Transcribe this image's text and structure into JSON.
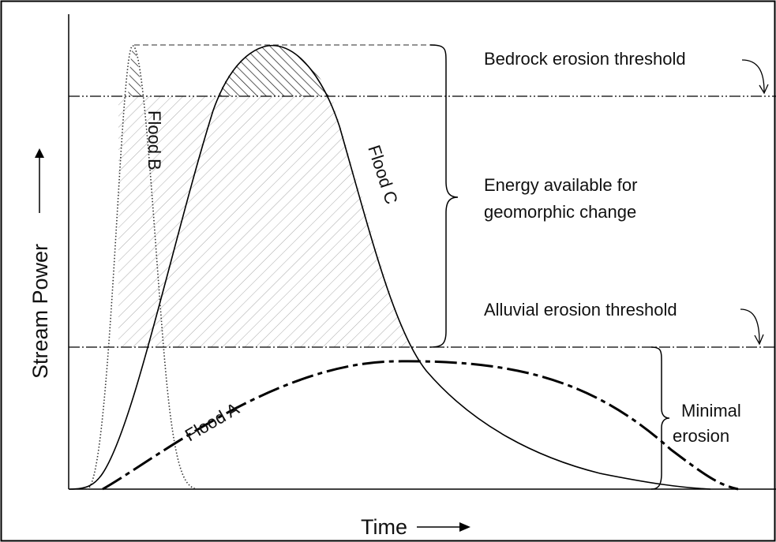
{
  "y_axis_label": "Stream Power",
  "x_axis_label": "Time",
  "curves": {
    "flood_a": "Flood A",
    "flood_b": "Flood B",
    "flood_c": "Flood C"
  },
  "thresholds": {
    "bedrock": "Bedrock erosion threshold",
    "alluvial": "Alluvial erosion threshold"
  },
  "annotations": {
    "energy": [
      "Energy available for",
      "geomorphic change"
    ],
    "minimal": [
      "Minimal",
      "erosion"
    ]
  }
}
